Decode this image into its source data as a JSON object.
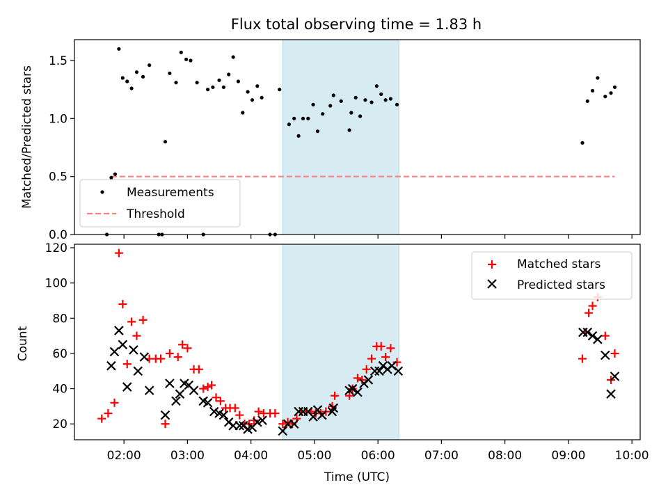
{
  "chart_data": [
    {
      "type": "scatter",
      "title": "Flux total observing time = 1.83 h",
      "xlabel": "",
      "ylabel": "Matched/Predicted stars",
      "xlim": [
        1.22,
        10.13
      ],
      "ylim": [
        0.0,
        1.68
      ],
      "x_unit": "hours UTC",
      "yticks": [
        0.0,
        0.5,
        1.0,
        1.5
      ],
      "ytick_labels": [
        "0.0",
        "0.5",
        "1.0",
        "1.5"
      ],
      "highlight_span": [
        4.5,
        6.33
      ],
      "legend": {
        "location": "lower-left",
        "entries": [
          "Measurements",
          "Threshold"
        ]
      },
      "series": [
        {
          "name": "Measurements",
          "marker": "dot",
          "color": "#000000",
          "points": [
            [
              1.73,
              0.0
            ],
            [
              1.8,
              0.49
            ],
            [
              1.86,
              0.52
            ],
            [
              1.92,
              1.6
            ],
            [
              1.98,
              1.35
            ],
            [
              2.05,
              1.32
            ],
            [
              2.12,
              1.26
            ],
            [
              2.2,
              1.4
            ],
            [
              2.3,
              1.36
            ],
            [
              2.4,
              1.46
            ],
            [
              2.55,
              0.0
            ],
            [
              2.6,
              0.0
            ],
            [
              2.65,
              0.8
            ],
            [
              2.72,
              1.39
            ],
            [
              2.82,
              1.31
            ],
            [
              2.9,
              1.57
            ],
            [
              2.98,
              1.51
            ],
            [
              3.05,
              1.5
            ],
            [
              3.15,
              1.31
            ],
            [
              3.25,
              0.0
            ],
            [
              3.32,
              1.25
            ],
            [
              3.4,
              1.27
            ],
            [
              3.5,
              1.33
            ],
            [
              3.57,
              1.27
            ],
            [
              3.65,
              1.38
            ],
            [
              3.72,
              1.53
            ],
            [
              3.8,
              1.32
            ],
            [
              3.87,
              1.05
            ],
            [
              3.95,
              1.23
            ],
            [
              4.02,
              1.16
            ],
            [
              4.1,
              1.28
            ],
            [
              4.17,
              1.18
            ],
            [
              4.3,
              0.0
            ],
            [
              4.38,
              0.0
            ],
            [
              4.45,
              1.25
            ],
            [
              4.6,
              0.95
            ],
            [
              4.68,
              1.0
            ],
            [
              4.75,
              0.85
            ],
            [
              4.82,
              1.0
            ],
            [
              4.9,
              1.0
            ],
            [
              4.98,
              1.12
            ],
            [
              5.05,
              0.89
            ],
            [
              5.13,
              1.04
            ],
            [
              5.25,
              1.11
            ],
            [
              5.3,
              1.2
            ],
            [
              5.42,
              1.15
            ],
            [
              5.55,
              0.9
            ],
            [
              5.58,
              1.05
            ],
            [
              5.65,
              1.18
            ],
            [
              5.72,
              1.02
            ],
            [
              5.8,
              1.16
            ],
            [
              5.9,
              1.14
            ],
            [
              5.98,
              1.28
            ],
            [
              6.05,
              1.21
            ],
            [
              6.12,
              1.16
            ],
            [
              6.2,
              1.17
            ],
            [
              6.3,
              1.12
            ],
            [
              9.22,
              0.79
            ],
            [
              9.3,
              1.15
            ],
            [
              9.38,
              1.24
            ],
            [
              9.46,
              1.35
            ],
            [
              9.58,
              1.19
            ],
            [
              9.67,
              1.22
            ],
            [
              9.73,
              1.27
            ]
          ]
        },
        {
          "name": "Threshold",
          "style": "dashed",
          "color": "#ff8080",
          "points": [
            [
              1.8,
              0.5
            ],
            [
              9.73,
              0.5
            ]
          ]
        }
      ]
    },
    {
      "type": "scatter",
      "title": "",
      "xlabel": "Time (UTC)",
      "ylabel": "Count",
      "xlim": [
        1.22,
        10.13
      ],
      "ylim": [
        11,
        122
      ],
      "x_unit": "hours UTC",
      "xticks": [
        2,
        3,
        4,
        5,
        6,
        7,
        8,
        9,
        10
      ],
      "xtick_labels": [
        "02:00",
        "03:00",
        "04:00",
        "05:00",
        "06:00",
        "07:00",
        "08:00",
        "09:00",
        "10:00"
      ],
      "yticks": [
        20,
        40,
        60,
        80,
        100,
        120
      ],
      "ytick_labels": [
        "20",
        "40",
        "60",
        "80",
        "100",
        "120"
      ],
      "highlight_span": [
        4.5,
        6.33
      ],
      "legend": {
        "location": "top-right",
        "entries": [
          "Matched stars",
          "Predicted stars"
        ]
      },
      "series": [
        {
          "name": "Matched stars",
          "marker": "plus",
          "color": "#ff0000",
          "points": [
            [
              1.65,
              23
            ],
            [
              1.75,
              26
            ],
            [
              1.85,
              32
            ],
            [
              1.92,
              117
            ],
            [
              1.98,
              88
            ],
            [
              2.05,
              54
            ],
            [
              2.12,
              78
            ],
            [
              2.2,
              70
            ],
            [
              2.3,
              79
            ],
            [
              2.4,
              57
            ],
            [
              2.5,
              57
            ],
            [
              2.58,
              57
            ],
            [
              2.65,
              20
            ],
            [
              2.72,
              60
            ],
            [
              2.85,
              58
            ],
            [
              2.92,
              65
            ],
            [
              3.0,
              63
            ],
            [
              3.1,
              51
            ],
            [
              3.18,
              51
            ],
            [
              3.25,
              40
            ],
            [
              3.32,
              41
            ],
            [
              3.38,
              42
            ],
            [
              3.45,
              35
            ],
            [
              3.52,
              33
            ],
            [
              3.6,
              29
            ],
            [
              3.67,
              29
            ],
            [
              3.75,
              29
            ],
            [
              3.82,
              25
            ],
            [
              3.9,
              20
            ],
            [
              3.97,
              20
            ],
            [
              4.05,
              22
            ],
            [
              4.12,
              27
            ],
            [
              4.2,
              26
            ],
            [
              4.3,
              26
            ],
            [
              4.38,
              26
            ],
            [
              4.5,
              20
            ],
            [
              4.58,
              21
            ],
            [
              4.65,
              20
            ],
            [
              4.72,
              23
            ],
            [
              4.8,
              27
            ],
            [
              4.88,
              27
            ],
            [
              4.95,
              27
            ],
            [
              5.02,
              26
            ],
            [
              5.1,
              26
            ],
            [
              5.18,
              27
            ],
            [
              5.28,
              30
            ],
            [
              5.32,
              36
            ],
            [
              5.55,
              36
            ],
            [
              5.6,
              40
            ],
            [
              5.68,
              46
            ],
            [
              5.75,
              45
            ],
            [
              5.82,
              51
            ],
            [
              5.9,
              57
            ],
            [
              5.98,
              64
            ],
            [
              6.05,
              64
            ],
            [
              6.12,
              58
            ],
            [
              6.2,
              63
            ],
            [
              6.3,
              55
            ],
            [
              9.22,
              57
            ],
            [
              9.28,
              72
            ],
            [
              9.32,
              83
            ],
            [
              9.38,
              87
            ],
            [
              9.46,
              92
            ],
            [
              9.58,
              70
            ],
            [
              9.67,
              45
            ],
            [
              9.73,
              60
            ]
          ]
        },
        {
          "name": "Predicted stars",
          "marker": "x",
          "color": "#000000",
          "points": [
            [
              1.8,
              53
            ],
            [
              1.85,
              61
            ],
            [
              1.92,
              73
            ],
            [
              1.98,
              65
            ],
            [
              2.05,
              41
            ],
            [
              2.15,
              62
            ],
            [
              2.22,
              50
            ],
            [
              2.32,
              58
            ],
            [
              2.4,
              39
            ],
            [
              2.65,
              25
            ],
            [
              2.72,
              43
            ],
            [
              2.82,
              33
            ],
            [
              2.88,
              37
            ],
            [
              2.95,
              43
            ],
            [
              3.02,
              42
            ],
            [
              3.1,
              39
            ],
            [
              3.25,
              33
            ],
            [
              3.32,
              32
            ],
            [
              3.42,
              27
            ],
            [
              3.5,
              26
            ],
            [
              3.57,
              25
            ],
            [
              3.65,
              21
            ],
            [
              3.72,
              19
            ],
            [
              3.82,
              19
            ],
            [
              3.88,
              19
            ],
            [
              3.95,
              17
            ],
            [
              4.02,
              18
            ],
            [
              4.1,
              21
            ],
            [
              4.18,
              22
            ],
            [
              4.5,
              16
            ],
            [
              4.58,
              20
            ],
            [
              4.68,
              20
            ],
            [
              4.75,
              27
            ],
            [
              4.82,
              27
            ],
            [
              4.9,
              27
            ],
            [
              4.98,
              24
            ],
            [
              5.05,
              28
            ],
            [
              5.12,
              25
            ],
            [
              5.28,
              27
            ],
            [
              5.3,
              29
            ],
            [
              5.55,
              39
            ],
            [
              5.6,
              40
            ],
            [
              5.68,
              38
            ],
            [
              5.78,
              43
            ],
            [
              5.85,
              45
            ],
            [
              5.95,
              50
            ],
            [
              6.02,
              50
            ],
            [
              6.08,
              53
            ],
            [
              6.15,
              51
            ],
            [
              6.22,
              53
            ],
            [
              6.32,
              50
            ],
            [
              9.23,
              72
            ],
            [
              9.3,
              72
            ],
            [
              9.38,
              70
            ],
            [
              9.46,
              68
            ],
            [
              9.58,
              59
            ],
            [
              9.67,
              37
            ],
            [
              9.73,
              47
            ]
          ]
        }
      ]
    }
  ],
  "colors": {
    "span_fill": "#add8e6",
    "matched": "#ff0000",
    "predicted": "#000000",
    "measurements": "#000000",
    "threshold": "#ff8080"
  }
}
